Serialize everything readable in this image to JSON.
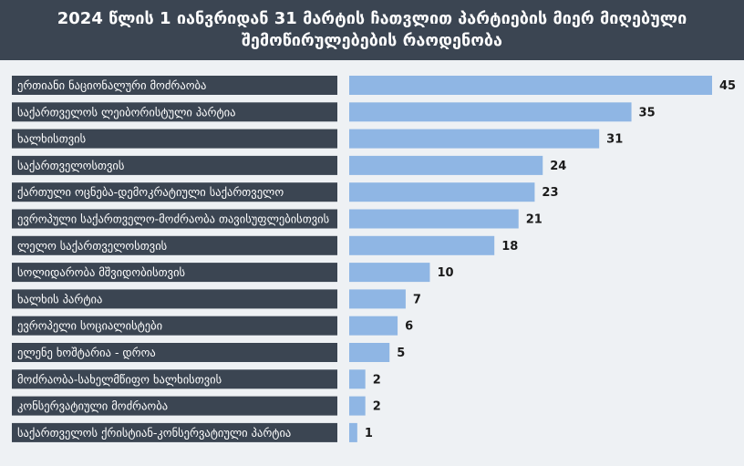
{
  "chart_data": {
    "type": "bar",
    "orientation": "horizontal",
    "title": "2024 წლის 1 იანვრიდან 31 მარტის ჩათვლით პარტიების მიერ მიღებული შემოწირულებების რაოდენობა",
    "categories": [
      "ერთიანი ნაციონალური მოძრაობა",
      "საქართველოს ლეიბორისტული პარტია",
      "ხალხისთვის",
      "საქართველოსთვის",
      "ქართული ოცნება-დემოკრატიული საქართველო",
      "ევროპული საქართველო-მოძრაობა თავისუფლებისთვის",
      "ლელო საქართველოსთვის",
      "სოლიდარობა მშვიდობისთვის",
      "ხალხის პარტია",
      "ევროპელი სოციალისტები",
      "ელენე ხოშტარია - დროა",
      "მოძრაობა-სახელმწიფო ხალხისთვის",
      "კონსერვატიული მოძრაობა",
      "საქართველოს ქრისტიან-კონსერვატიული პარტია"
    ],
    "values": [
      45,
      35,
      31,
      24,
      23,
      21,
      18,
      10,
      7,
      6,
      5,
      2,
      2,
      1
    ],
    "bar_color": "#8fb6e4",
    "label_box_color": "#3b4552",
    "grid": false,
    "legend": "none"
  }
}
